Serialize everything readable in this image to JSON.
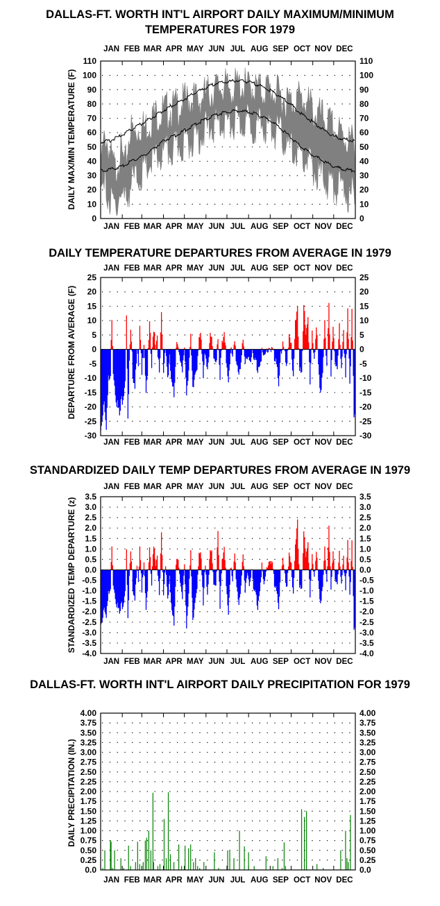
{
  "months": [
    "JAN",
    "FEB",
    "MAR",
    "APR",
    "MAY",
    "JUN",
    "JUL",
    "AUG",
    "SEP",
    "OCT",
    "NOV",
    "DEC"
  ],
  "colors": {
    "max_min_band": "#808080",
    "normals": "#000000",
    "above": "#ff0000",
    "below": "#0000ff",
    "precip": "#008000",
    "grid": "#000000"
  },
  "chart_data": [
    {
      "type": "area",
      "title": "DALLAS-FT. WORTH INT'L AIRPORT DAILY MAXIMUM/MINIMUM TEMPERATURES FOR 1979",
      "title_lines": [
        "DALLAS-FT. WORTH INT'L AIRPORT DAILY MAXIMUM/MINIMUM",
        "TEMPERATURES FOR 1979"
      ],
      "ylabel": "DAILY MAX/MIN TEMPERATURE (F)",
      "ylim": [
        0,
        110
      ],
      "yticks": [
        0,
        10,
        20,
        30,
        40,
        50,
        60,
        70,
        80,
        90,
        100,
        110
      ],
      "grid": true,
      "x_unit": "day of year",
      "xlim": [
        1,
        365
      ],
      "series": [
        {
          "role": "daily max/min band",
          "x": [
            1,
            8,
            15,
            22,
            29,
            36,
            43,
            50,
            57,
            64,
            71,
            78,
            85,
            92,
            99,
            106,
            113,
            120,
            127,
            134,
            141,
            148,
            155,
            162,
            169,
            176,
            183,
            190,
            197,
            204,
            211,
            218,
            225,
            232,
            239,
            246,
            253,
            260,
            267,
            274,
            281,
            288,
            295,
            302,
            309,
            316,
            323,
            330,
            337,
            344,
            351,
            358,
            365
          ],
          "high": [
            44,
            66,
            50,
            40,
            55,
            42,
            70,
            65,
            72,
            70,
            75,
            79,
            80,
            82,
            83,
            84,
            86,
            88,
            90,
            91,
            88,
            93,
            94,
            96,
            98,
            100,
            97,
            98,
            99,
            100,
            98,
            99,
            97,
            96,
            98,
            96,
            94,
            92,
            90,
            88,
            92,
            90,
            89,
            85,
            80,
            78,
            76,
            72,
            68,
            66,
            64,
            60,
            62
          ],
          "low": [
            20,
            30,
            18,
            15,
            25,
            20,
            30,
            35,
            38,
            40,
            45,
            48,
            50,
            52,
            55,
            55,
            58,
            60,
            62,
            64,
            65,
            68,
            70,
            72,
            74,
            75,
            74,
            72,
            74,
            74,
            75,
            73,
            73,
            72,
            72,
            70,
            68,
            65,
            60,
            55,
            55,
            50,
            48,
            45,
            40,
            38,
            35,
            32,
            30,
            28,
            30,
            20,
            26
          ]
        },
        {
          "role": "normal maximum",
          "x": [
            1,
            15,
            32,
            46,
            60,
            74,
            91,
            105,
            121,
            135,
            152,
            166,
            182,
            196,
            213,
            227,
            244,
            258,
            274,
            288,
            305,
            319,
            335,
            349,
            365
          ],
          "y": [
            54,
            55,
            59,
            63,
            67,
            71,
            76,
            80,
            84,
            88,
            92,
            95,
            96,
            97,
            96,
            94,
            90,
            86,
            80,
            74,
            68,
            63,
            58,
            56,
            55
          ]
        },
        {
          "role": "normal minimum",
          "x": [
            1,
            15,
            32,
            46,
            60,
            74,
            91,
            105,
            121,
            135,
            152,
            166,
            182,
            196,
            213,
            227,
            244,
            258,
            274,
            288,
            305,
            319,
            335,
            349,
            365
          ],
          "y": [
            34,
            35,
            37,
            41,
            44,
            48,
            55,
            58,
            62,
            66,
            70,
            73,
            75,
            76,
            75,
            73,
            69,
            64,
            57,
            51,
            45,
            41,
            37,
            35,
            34
          ]
        }
      ]
    },
    {
      "type": "bar",
      "title": "DAILY TEMPERATURE DEPARTURES FROM AVERAGE IN 1979",
      "ylabel": "DEPARTURE FROM AVERAGE (F)",
      "ylim": [
        -30,
        25
      ],
      "yticks": [
        -30,
        -25,
        -20,
        -15,
        -10,
        -5,
        0,
        5,
        10,
        15,
        20,
        25
      ],
      "grid": true,
      "x_unit": "day of year",
      "anchors_x": [
        1,
        3,
        6,
        9,
        12,
        15,
        17,
        19,
        22,
        25,
        28,
        31,
        33,
        36,
        38,
        40,
        42,
        44,
        47,
        50,
        53,
        55,
        57,
        60,
        63,
        66,
        68,
        71,
        74,
        77,
        80,
        82,
        85,
        88,
        91,
        94,
        97,
        100,
        103,
        106,
        109,
        112,
        115,
        118,
        121,
        124,
        127,
        130,
        133,
        136,
        139,
        142,
        145,
        148,
        151,
        154,
        157,
        160,
        163,
        166,
        169,
        172,
        175,
        178,
        181,
        184,
        187,
        190,
        193,
        196,
        199,
        202,
        205,
        208,
        211,
        214,
        217,
        220,
        223,
        226,
        229,
        232,
        235,
        238,
        241,
        244,
        247,
        250,
        253,
        256,
        259,
        262,
        265,
        268,
        271,
        274,
        277,
        280,
        283,
        286,
        289,
        292,
        295,
        298,
        301,
        304,
        307,
        310,
        313,
        316,
        319,
        322,
        325,
        328,
        331,
        334,
        337,
        340,
        343,
        346,
        349,
        352,
        355,
        358,
        361,
        364
      ],
      "anchors_y": [
        -27,
        -22,
        -15,
        -24,
        -10,
        -8,
        14,
        -5,
        -12,
        -18,
        -22,
        -16,
        -14,
        -8,
        15,
        -25,
        -4,
        6,
        -6,
        -10,
        4,
        -7,
        8,
        -8,
        6,
        -12,
        -6,
        9,
        -5,
        10,
        3,
        7,
        -9,
        12,
        -6,
        4,
        -8,
        -3,
        -12,
        -15,
        4,
        5,
        -4,
        -8,
        3,
        -13,
        -4,
        4,
        -14,
        -7,
        -3,
        7,
        3,
        -9,
        2,
        -5,
        4,
        5,
        -4,
        -3,
        7,
        -7,
        3,
        5,
        -2,
        -8,
        2,
        -3,
        4,
        -3,
        -6,
        -2,
        2,
        -4,
        1,
        -2,
        1,
        -3,
        -3,
        -5,
        -2,
        1,
        -3,
        0,
        2,
        3,
        2,
        -3,
        -5,
        -9,
        1,
        3,
        -2,
        -6,
        7,
        5,
        -10,
        9,
        14,
        -4,
        -6,
        16,
        5,
        12,
        -9,
        10,
        -4,
        8,
        -4,
        -12,
        -6,
        9,
        -7,
        15,
        -5,
        12,
        -6,
        -7,
        10,
        -4,
        9,
        -10,
        14,
        -13,
        18,
        -20,
        10,
        -8,
        6,
        11
      ]
    },
    {
      "type": "bar",
      "title": "STANDARDIZED DAILY TEMP DEPARTURES FROM AVERAGE IN 1979",
      "ylabel": "STANDARDIZED TEMP DEPARTURE (z)",
      "ylim": [
        -4,
        3.5
      ],
      "yticks": [
        -4.0,
        -3.5,
        -3.0,
        -2.5,
        -2.0,
        -1.5,
        -1.0,
        -0.5,
        0.0,
        0.5,
        1.0,
        1.5,
        2.0,
        2.5,
        3.0,
        3.5
      ],
      "grid": true,
      "x_unit": "day of year",
      "anchors_x": [
        1,
        3,
        6,
        9,
        12,
        15,
        17,
        19,
        22,
        25,
        28,
        31,
        33,
        36,
        38,
        40,
        42,
        44,
        47,
        50,
        53,
        55,
        57,
        60,
        63,
        66,
        68,
        71,
        74,
        77,
        80,
        82,
        85,
        88,
        91,
        94,
        97,
        100,
        103,
        106,
        109,
        112,
        115,
        118,
        121,
        124,
        127,
        130,
        133,
        136,
        139,
        142,
        145,
        148,
        151,
        154,
        157,
        160,
        163,
        166,
        169,
        172,
        175,
        178,
        181,
        184,
        187,
        190,
        193,
        196,
        199,
        202,
        205,
        208,
        211,
        214,
        217,
        220,
        223,
        226,
        229,
        232,
        235,
        238,
        241,
        244,
        247,
        250,
        253,
        256,
        259,
        262,
        265,
        268,
        271,
        274,
        277,
        280,
        283,
        286,
        289,
        292,
        295,
        298,
        301,
        304,
        307,
        310,
        313,
        316,
        319,
        322,
        325,
        328,
        331,
        334,
        337,
        340,
        343,
        346,
        349,
        352,
        355,
        358,
        361,
        364
      ],
      "anchors_y": [
        -2.5,
        -2.2,
        -1.5,
        -1.9,
        -1.1,
        -0.8,
        1.5,
        -0.4,
        -1.0,
        -1.6,
        -2.0,
        -1.5,
        -1.4,
        -0.7,
        1.3,
        -2.4,
        -0.3,
        0.8,
        -0.6,
        -1.1,
        0.6,
        -0.7,
        1.1,
        -1.0,
        0.8,
        -1.6,
        -0.7,
        1.0,
        -0.6,
        1.5,
        0.5,
        0.9,
        -1.3,
        1.7,
        -1.0,
        0.6,
        -1.2,
        -0.4,
        -2.0,
        -2.5,
        0.6,
        0.9,
        -0.6,
        -1.4,
        0.5,
        -2.5,
        -0.8,
        0.8,
        -2.5,
        -1.4,
        -0.5,
        1.1,
        0.5,
        -1.6,
        0.6,
        -1.0,
        0.7,
        1.0,
        -0.8,
        -0.6,
        2.2,
        -1.5,
        0.5,
        1.0,
        -0.5,
        -1.8,
        0.4,
        -0.6,
        0.9,
        -0.6,
        -1.4,
        -0.5,
        0.6,
        -1.0,
        0.3,
        -0.6,
        0.4,
        -0.9,
        -1.0,
        -1.6,
        -0.6,
        0.4,
        -0.8,
        0.0,
        0.5,
        0.7,
        0.5,
        -0.7,
        -1.0,
        -1.5,
        0.2,
        0.6,
        -0.3,
        -0.9,
        1.0,
        0.6,
        -1.2,
        1.1,
        2.3,
        -0.5,
        -0.7,
        1.9,
        0.6,
        1.4,
        -1.0,
        1.1,
        -0.4,
        0.9,
        -0.4,
        -1.3,
        -0.6,
        1.0,
        -0.7,
        2.0,
        -0.5,
        1.3,
        -0.6,
        -0.7,
        1.0,
        -0.4,
        0.9,
        -1.0,
        1.4,
        -1.3,
        1.8,
        -2.5,
        1.1,
        -0.9,
        0.6,
        1.1
      ]
    },
    {
      "type": "bar",
      "title": "DALLAS-FT. WORTH INT'L AIRPORT DAILY PRECIPITATION FOR 1979",
      "ylabel": "DAILY PRECIPITATION (IN.)",
      "ylim": [
        0,
        4.0
      ],
      "yticks": [
        0.0,
        0.25,
        0.5,
        0.75,
        1.0,
        1.25,
        1.5,
        1.75,
        2.0,
        2.25,
        2.5,
        2.75,
        3.0,
        3.25,
        3.5,
        3.75,
        4.0
      ],
      "grid": true,
      "x_unit": "day of year",
      "x": [
        4,
        7,
        15,
        16,
        18,
        21,
        30,
        34,
        41,
        44,
        51,
        54,
        57,
        62,
        65,
        67,
        70,
        73,
        76,
        77,
        83,
        86,
        92,
        95,
        98,
        101,
        106,
        113,
        117,
        122,
        127,
        130,
        134,
        137,
        140,
        143,
        149,
        164,
        170,
        183,
        186,
        192,
        200,
        207,
        213,
        221,
        238,
        248,
        255,
        261,
        264,
        266,
        289,
        293,
        296,
        311,
        320,
        345,
        352,
        354,
        356,
        359
      ],
      "y": [
        0.05,
        0.5,
        0.76,
        0.72,
        0.05,
        0.5,
        0.3,
        0.05,
        0.62,
        0.1,
        0.2,
        0.72,
        0.15,
        0.2,
        0.75,
        0.82,
        1.0,
        0.5,
        1.97,
        0.2,
        0.1,
        0.15,
        1.3,
        0.3,
        1.98,
        0.4,
        0.2,
        0.65,
        0.1,
        0.62,
        0.55,
        0.65,
        0.2,
        0.3,
        0.1,
        0.05,
        0.2,
        0.45,
        0.05,
        0.5,
        0.5,
        0.3,
        1.0,
        0.6,
        0.45,
        0.1,
        0.35,
        0.1,
        0.3,
        0.05,
        0.7,
        0.1,
        1.55,
        1.35,
        1.5,
        0.15,
        0.05,
        0.5,
        1.0,
        0.3,
        0.2,
        1.4
      ]
    }
  ]
}
